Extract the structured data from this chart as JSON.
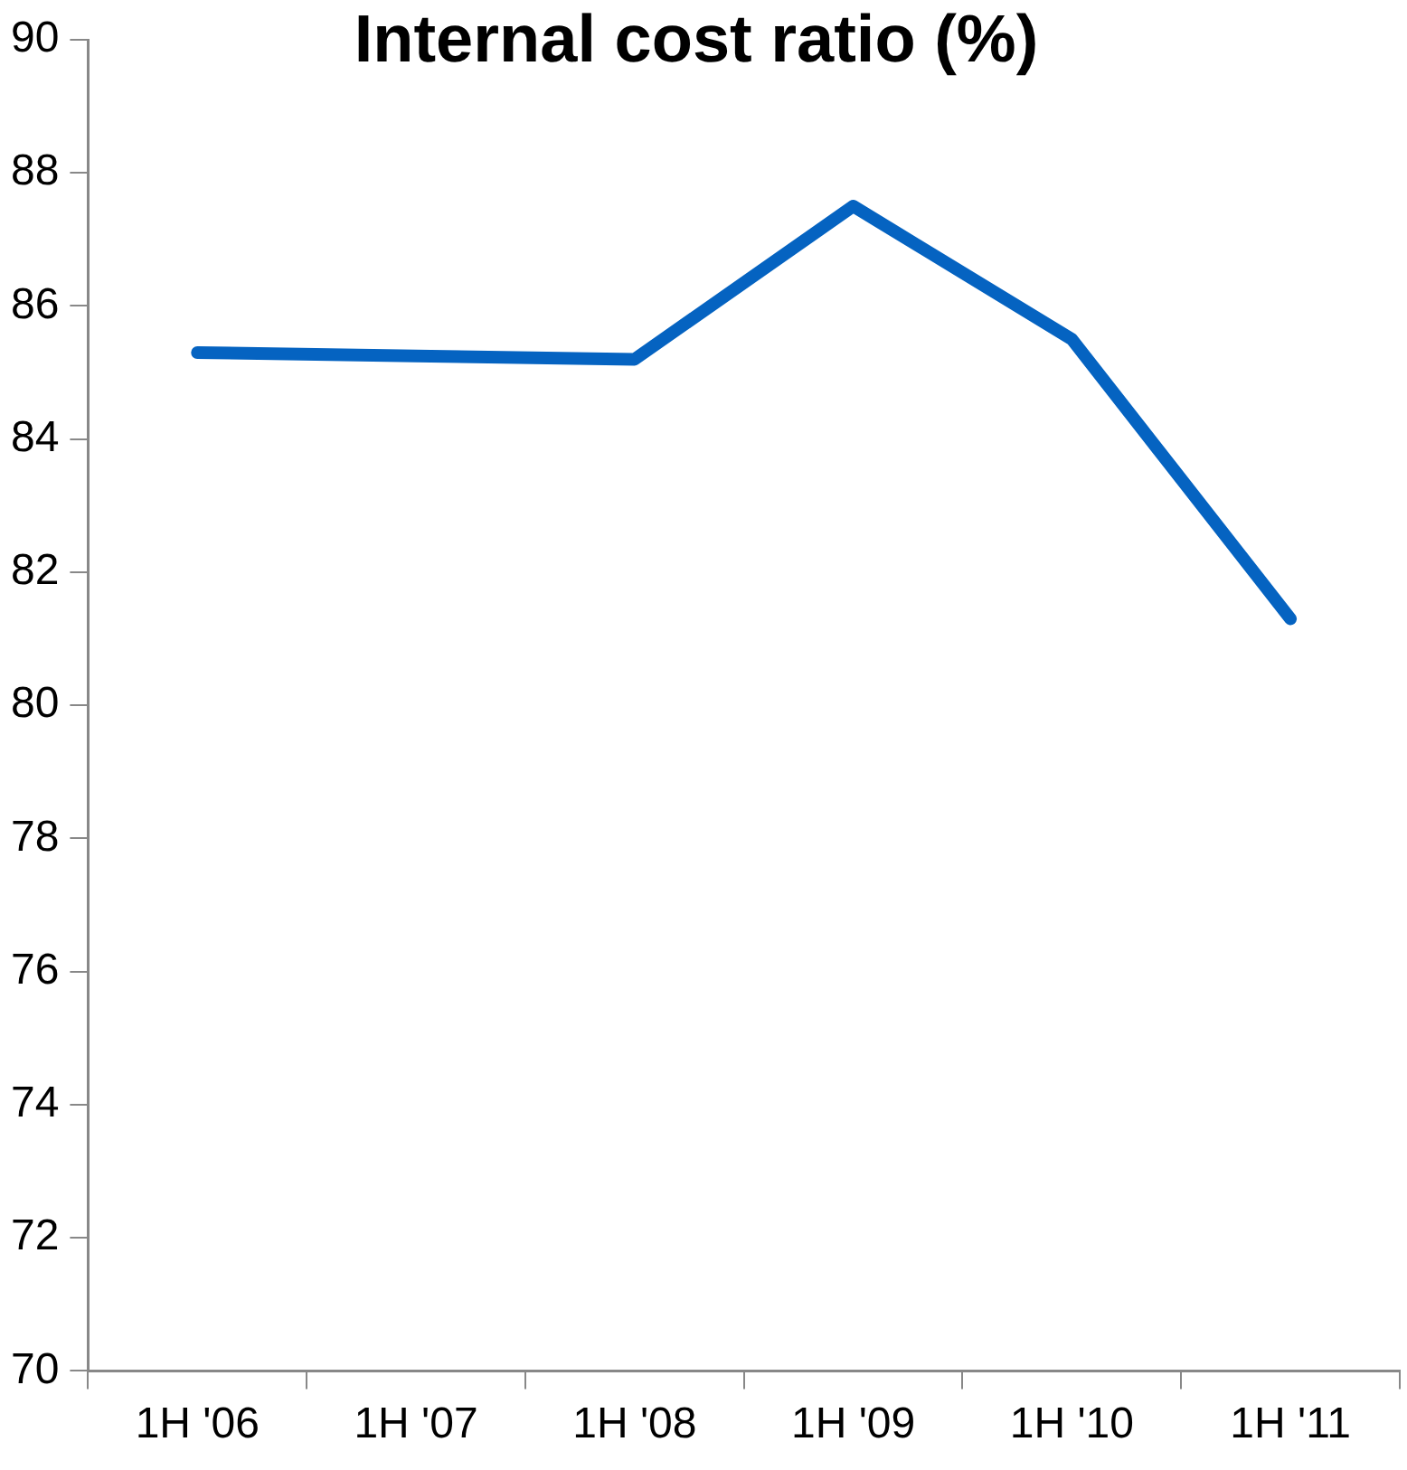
{
  "chart_data": {
    "type": "line",
    "title": "Internal cost ratio (%)",
    "categories": [
      "1H '06",
      "1H '07",
      "1H '08",
      "1H '09",
      "1H '10",
      "1H '11"
    ],
    "series": [
      {
        "color": "#0563c1",
        "values": [
          85.3,
          85.25,
          85.2,
          87.5,
          85.5,
          81.3
        ]
      }
    ],
    "ylim": [
      70,
      90
    ],
    "yticks": [
      70,
      72,
      74,
      76,
      78,
      80,
      82,
      84,
      86,
      88,
      90
    ],
    "grid": false,
    "legend": false,
    "marker": "none",
    "line_style": "solid"
  }
}
